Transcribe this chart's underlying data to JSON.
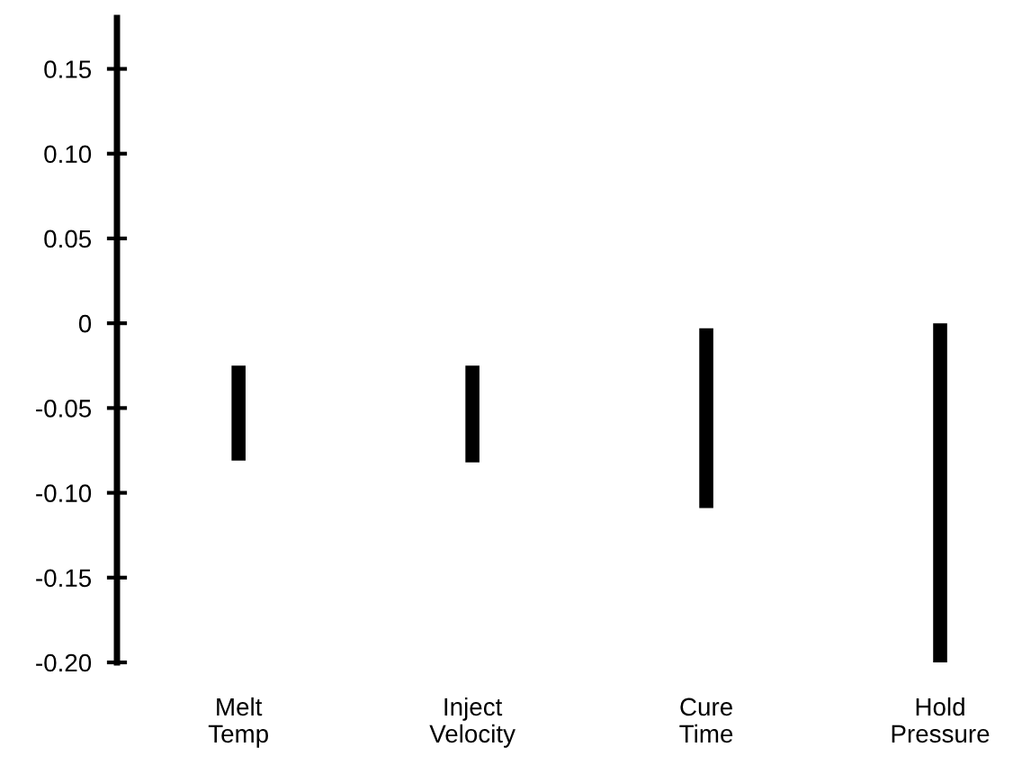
{
  "chart_data": {
    "type": "bar",
    "categories": [
      "Melt\nTemp",
      "Inject\nVelocity",
      "Cure\nTime",
      "Hold\nPressure"
    ],
    "base": [
      -0.081,
      -0.082,
      -0.109,
      -0.2
    ],
    "values": [
      0.056,
      0.057,
      0.106,
      0.2
    ],
    "color": "#000000",
    "ylim": [
      -0.2,
      0.18
    ],
    "yticks": [
      {
        "value": 0.15,
        "label": "0.15"
      },
      {
        "value": 0.1,
        "label": "0.10"
      },
      {
        "value": 0.05,
        "label": "0.05"
      },
      {
        "value": 0,
        "label": "0"
      },
      {
        "value": -0.05,
        "label": "-0.05"
      },
      {
        "value": -0.1,
        "label": "-0.10"
      },
      {
        "value": -0.15,
        "label": "-0.15"
      },
      {
        "value": -0.2,
        "label": "-0.20"
      }
    ],
    "grid": false,
    "legend": false
  }
}
